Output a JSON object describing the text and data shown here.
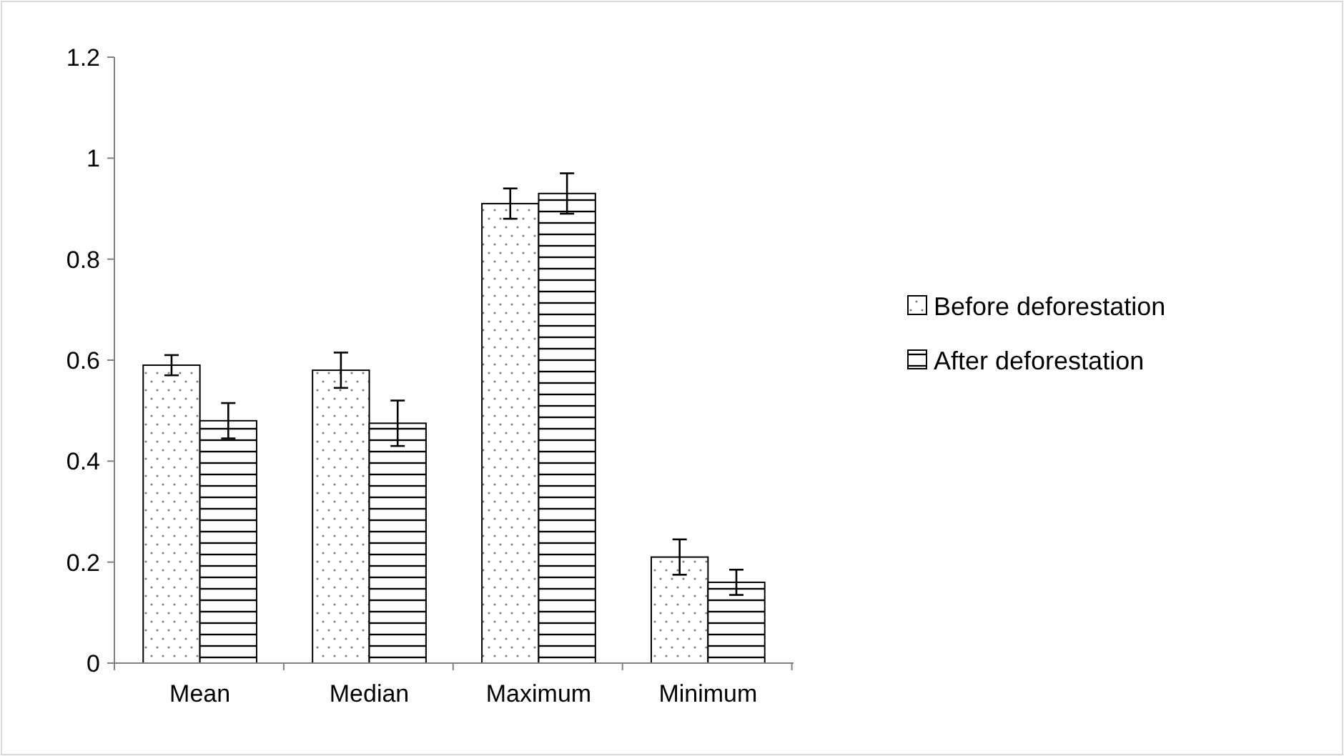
{
  "chart_data": {
    "type": "bar",
    "categories": [
      "Mean",
      "Median",
      "Maximum",
      "Minimum"
    ],
    "series": [
      {
        "name": "Before deforestation",
        "color": "#000000",
        "values": [
          0.59,
          0.58,
          0.91,
          0.21
        ],
        "errors": [
          0.02,
          0.035,
          0.03,
          0.035
        ]
      },
      {
        "name": "After deforestation",
        "color": "#000000",
        "values": [
          0.48,
          0.475,
          0.93,
          0.16
        ],
        "errors": [
          0.035,
          0.045,
          0.04,
          0.025
        ]
      }
    ],
    "ylim": [
      0,
      1.2
    ],
    "yticks": [
      0,
      0.2,
      0.4,
      0.6,
      0.8,
      1,
      1.2
    ],
    "grid": false,
    "legend": "right"
  }
}
